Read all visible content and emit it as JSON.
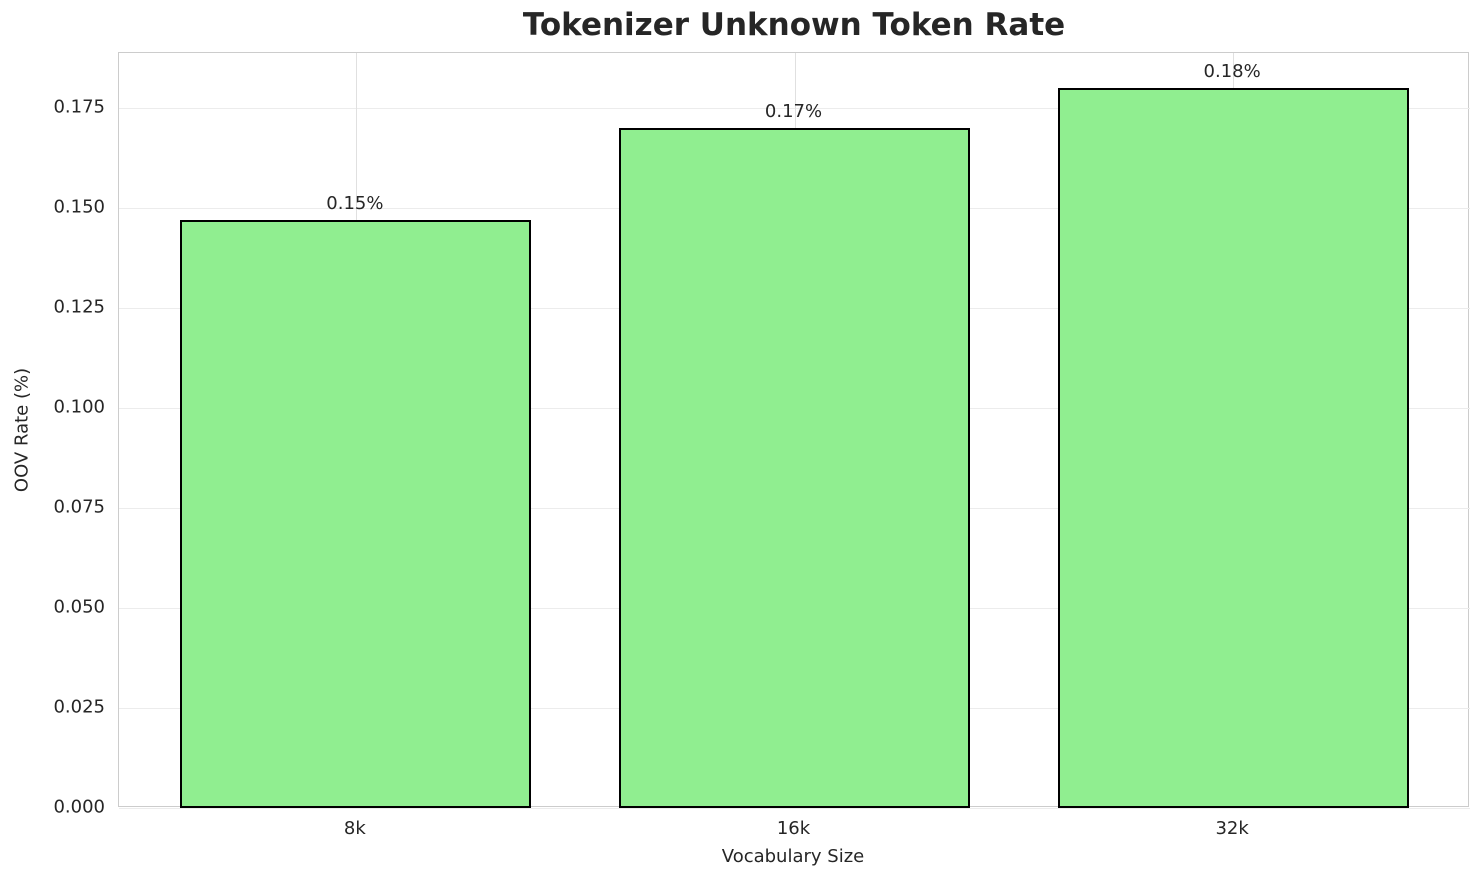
{
  "chart_data": {
    "type": "bar",
    "title": "Tokenizer Unknown Token Rate",
    "xlabel": "Vocabulary Size",
    "ylabel": "OOV Rate (%)",
    "categories": [
      "8k",
      "16k",
      "32k"
    ],
    "values": [
      0.147,
      0.17,
      0.18
    ],
    "bar_labels": [
      "0.15%",
      "0.17%",
      "0.18%"
    ],
    "yticks": [
      0.0,
      0.025,
      0.05,
      0.075,
      0.1,
      0.125,
      0.15,
      0.175
    ],
    "ytick_labels": [
      "0.000",
      "0.025",
      "0.050",
      "0.075",
      "0.100",
      "0.125",
      "0.150",
      "0.175"
    ],
    "ylim": [
      0,
      0.18875
    ],
    "grid": true,
    "legend": "none",
    "bar_color": "#90EE90",
    "bar_edge_color": "#000000",
    "grid_color": "#ececec",
    "spine_color": "#cccccc",
    "text_color": "#262626"
  }
}
